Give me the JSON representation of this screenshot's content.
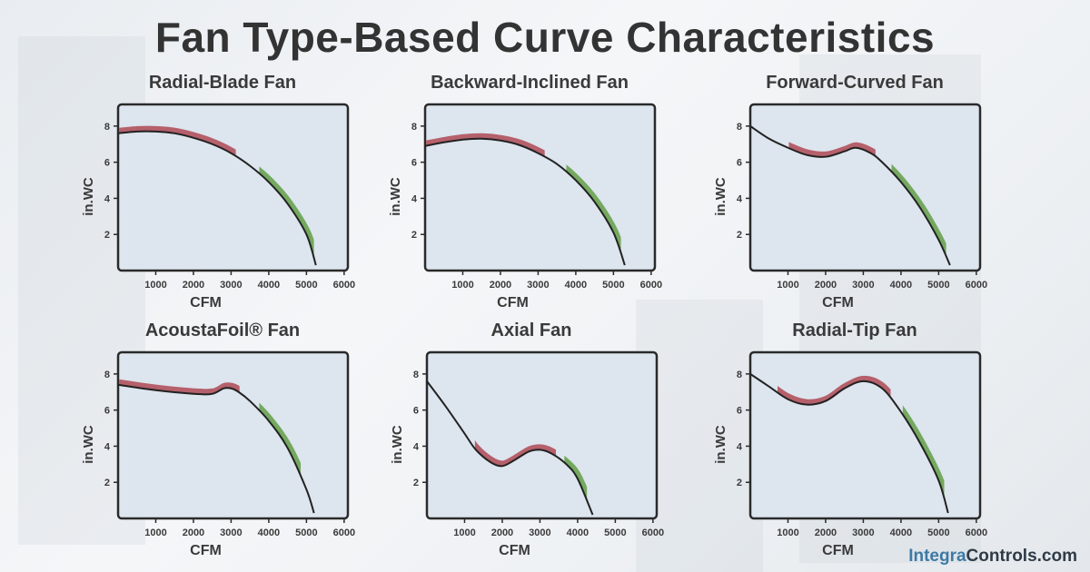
{
  "title": "Fan Type-Based Curve Characteristics",
  "brand": {
    "part1": "Integra",
    "part2": "Controls.com"
  },
  "colors": {
    "plot_bg": "#dde5ee",
    "curve": "#222222",
    "red_band": "#b5606b",
    "green_band": "#74a95f",
    "text": "#3a3a3a"
  },
  "chart_data": [
    {
      "type": "line",
      "title": "Radial-Blade Fan",
      "xlabel": "CFM",
      "ylabel": "in.WC",
      "xlim": [
        0,
        6100
      ],
      "ylim": [
        0,
        9.2
      ],
      "xticks": [
        1000,
        2000,
        3000,
        4000,
        5000,
        6000
      ],
      "yticks": [
        2,
        4,
        6,
        8
      ],
      "grid": false,
      "x": [
        0,
        500,
        1000,
        1500,
        2000,
        2500,
        3000,
        3500,
        4000,
        4500,
        5000,
        5250
      ],
      "y": [
        7.6,
        7.7,
        7.7,
        7.6,
        7.35,
        7.0,
        6.5,
        5.8,
        4.9,
        3.7,
        2.0,
        0.3
      ],
      "red_range": [
        0,
        3100
      ],
      "green_range": [
        3700,
        5150
      ]
    },
    {
      "type": "line",
      "title": "Backward-Inclined Fan",
      "xlabel": "CFM",
      "ylabel": "in.WC",
      "xlim": [
        0,
        6100
      ],
      "ylim": [
        0,
        9.2
      ],
      "xticks": [
        1000,
        2000,
        3000,
        4000,
        5000,
        6000
      ],
      "yticks": [
        2,
        4,
        6,
        8
      ],
      "grid": false,
      "x": [
        0,
        500,
        1000,
        1500,
        2000,
        2500,
        3000,
        3500,
        4000,
        4500,
        5000,
        5300
      ],
      "y": [
        6.9,
        7.1,
        7.25,
        7.3,
        7.2,
        6.95,
        6.5,
        5.9,
        5.0,
        3.8,
        2.1,
        0.3
      ],
      "red_range": [
        0,
        3150
      ],
      "green_range": [
        3700,
        5150
      ]
    },
    {
      "type": "line",
      "title": "Forward-Curved Fan",
      "xlabel": "CFM",
      "ylabel": "in.WC",
      "xlim": [
        0,
        6100
      ],
      "ylim": [
        0,
        9.2
      ],
      "xticks": [
        1000,
        2000,
        3000,
        4000,
        5000,
        6000
      ],
      "yticks": [
        2,
        4,
        6,
        8
      ],
      "grid": false,
      "x": [
        0,
        500,
        1000,
        1500,
        2000,
        2500,
        2800,
        3200,
        3500,
        4000,
        4500,
        5000,
        5300
      ],
      "y": [
        8.0,
        7.3,
        6.8,
        6.4,
        6.3,
        6.6,
        6.8,
        6.5,
        6.0,
        4.9,
        3.5,
        1.7,
        0.3
      ],
      "red_range": [
        1000,
        3300
      ],
      "green_range": [
        3700,
        5150
      ]
    },
    {
      "type": "line",
      "title": "AcoustaFoil® Fan",
      "xlabel": "CFM",
      "ylabel": "in.WC",
      "xlim": [
        0,
        6100
      ],
      "ylim": [
        0,
        9.2
      ],
      "xticks": [
        1000,
        2000,
        3000,
        4000,
        5000,
        6000
      ],
      "yticks": [
        2,
        4,
        6,
        8
      ],
      "grid": false,
      "x": [
        0,
        1000,
        2000,
        2500,
        2800,
        3000,
        3200,
        3500,
        4000,
        4500,
        5000,
        5200
      ],
      "y": [
        7.4,
        7.1,
        6.9,
        6.9,
        7.2,
        7.2,
        7.0,
        6.5,
        5.4,
        3.9,
        1.6,
        0.3
      ],
      "red_range": [
        0,
        3200
      ],
      "green_range": [
        3700,
        4800
      ]
    },
    {
      "type": "line",
      "title": "Axial Fan",
      "xlabel": "CFM",
      "ylabel": "in.WC",
      "xlim": [
        0,
        6100
      ],
      "ylim": [
        0,
        9.2
      ],
      "xticks": [
        1000,
        2000,
        3000,
        4000,
        5000,
        6000
      ],
      "yticks": [
        2,
        4,
        6,
        8
      ],
      "grid": false,
      "x": [
        0,
        500,
        1000,
        1300,
        1700,
        2000,
        2300,
        2700,
        3000,
        3300,
        3700,
        4000,
        4400
      ],
      "y": [
        7.6,
        6.2,
        4.7,
        3.8,
        3.1,
        2.9,
        3.2,
        3.7,
        3.8,
        3.6,
        3.0,
        2.2,
        0.2
      ],
      "red_range": [
        1250,
        3400
      ],
      "green_range": [
        3600,
        4200
      ]
    },
    {
      "type": "line",
      "title": "Radial-Tip Fan",
      "xlabel": "CFM",
      "ylabel": "in.WC",
      "xlim": [
        0,
        6100
      ],
      "ylim": [
        0,
        9.2
      ],
      "xticks": [
        1000,
        2000,
        3000,
        4000,
        5000,
        6000
      ],
      "yticks": [
        2,
        4,
        6,
        8
      ],
      "grid": false,
      "x": [
        0,
        500,
        1000,
        1500,
        2000,
        2500,
        3000,
        3500,
        4000,
        4500,
        5000,
        5250
      ],
      "y": [
        8.0,
        7.3,
        6.6,
        6.3,
        6.5,
        7.2,
        7.6,
        7.2,
        5.9,
        4.2,
        2.1,
        0.3
      ],
      "red_range": [
        700,
        3700
      ],
      "green_range": [
        4000,
        5100
      ]
    }
  ]
}
